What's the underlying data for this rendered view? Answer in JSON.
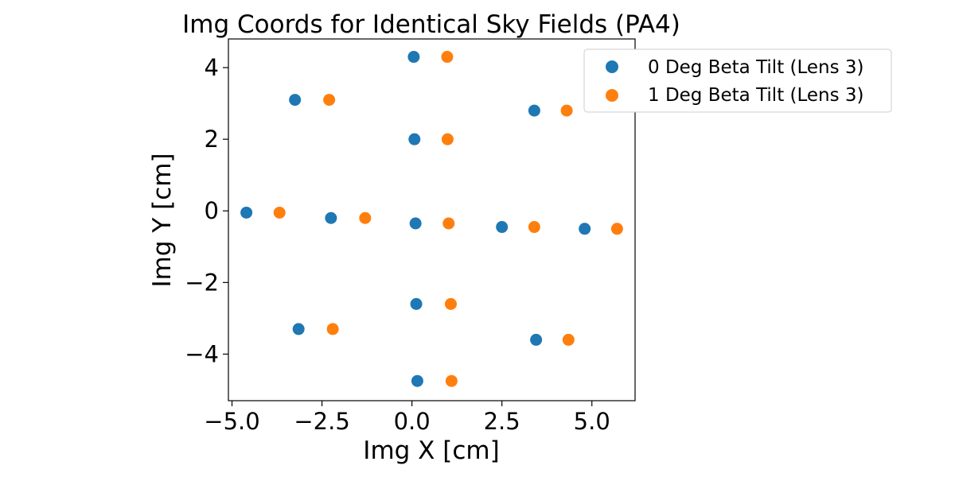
{
  "chart_data": {
    "type": "scatter",
    "title": "Img Coords for Identical Sky Fields (PA4)",
    "xlabel": "Img X [cm]",
    "ylabel": "Img Y [cm]",
    "xlim": [
      -5.1,
      6.2
    ],
    "ylim": [
      -5.3,
      4.8
    ],
    "xticks": [
      -5.0,
      -2.5,
      0.0,
      2.5,
      5.0
    ],
    "xtick_labels": [
      "−5.0",
      "−2.5",
      "0.0",
      "2.5",
      "5.0"
    ],
    "yticks": [
      -4,
      -2,
      0,
      2,
      4
    ],
    "ytick_labels": [
      "−4",
      "−2",
      "0",
      "2",
      "4"
    ],
    "grid": false,
    "legend_position": "outside-top-right",
    "series": [
      {
        "name": "0 Deg Beta Tilt (Lens 3)",
        "color": "#1f77b4",
        "points": [
          [
            0.05,
            4.3
          ],
          [
            -3.25,
            3.1
          ],
          [
            3.4,
            2.8
          ],
          [
            0.07,
            2.0
          ],
          [
            -4.6,
            -0.05
          ],
          [
            -2.25,
            -0.2
          ],
          [
            0.1,
            -0.35
          ],
          [
            2.5,
            -0.45
          ],
          [
            4.8,
            -0.5
          ],
          [
            0.12,
            -2.6
          ],
          [
            -3.15,
            -3.3
          ],
          [
            3.45,
            -3.6
          ],
          [
            0.15,
            -4.75
          ]
        ]
      },
      {
        "name": "1 Deg Beta Tilt (Lens 3)",
        "color": "#ff7f0e",
        "points": [
          [
            0.98,
            4.3
          ],
          [
            -2.3,
            3.1
          ],
          [
            4.3,
            2.8
          ],
          [
            0.99,
            2.0
          ],
          [
            -3.68,
            -0.05
          ],
          [
            -1.3,
            -0.2
          ],
          [
            1.02,
            -0.35
          ],
          [
            3.4,
            -0.45
          ],
          [
            5.7,
            -0.5
          ],
          [
            1.08,
            -2.6
          ],
          [
            -2.2,
            -3.3
          ],
          [
            4.35,
            -3.6
          ],
          [
            1.1,
            -4.75
          ]
        ]
      }
    ]
  }
}
